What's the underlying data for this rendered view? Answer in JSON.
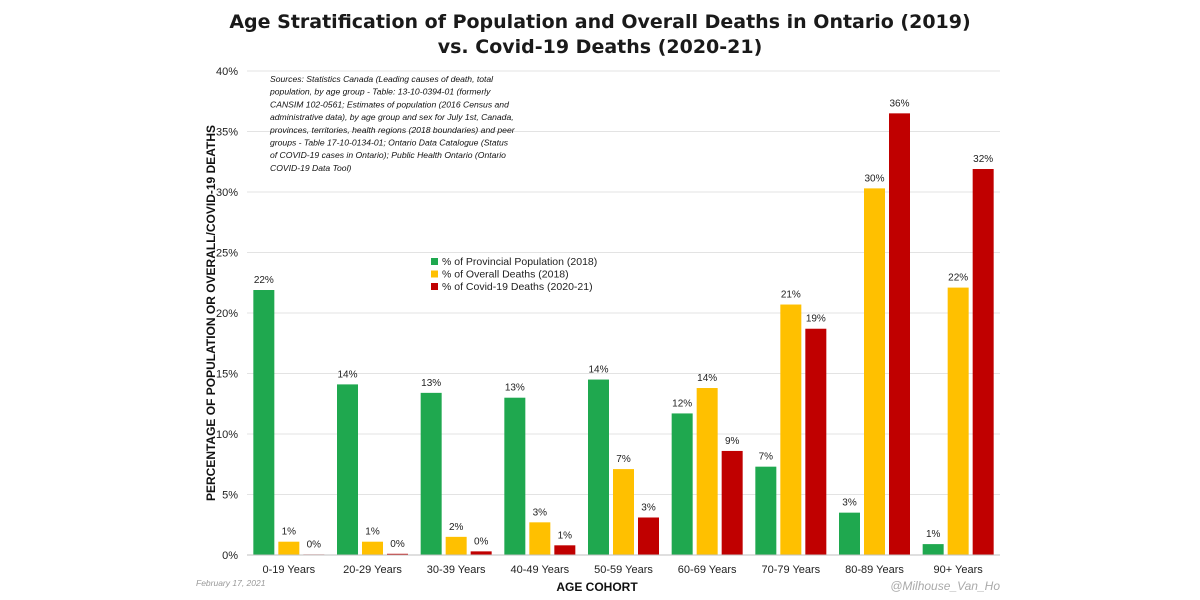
{
  "chart_data": {
    "type": "bar",
    "title_lines": [
      "Age Stratification of Population and Overall Deaths in Ontario (2019)",
      "vs. Covid-19 Deaths (2020-21)"
    ],
    "xlabel": "AGE COHORT",
    "ylabel": "PERCENTAGE OF POPULATION OR OVERALL/COVID-19 DEATHS",
    "ylim": [
      0,
      40
    ],
    "yticks": [
      "0%",
      "5%",
      "10%",
      "15%",
      "20%",
      "25%",
      "30%",
      "35%",
      "40%"
    ],
    "grid": true,
    "legend_position": "center-left",
    "categories": [
      "0-19 Years",
      "20-29 Years",
      "30-39 Years",
      "40-49 Years",
      "50-59 Years",
      "60-69 Years",
      "70-79 Years",
      "80-89 Years",
      "90+ Years"
    ],
    "series": [
      {
        "name": "% of Provincial Population (2018)",
        "color": "#1fa84f",
        "values": [
          21.9,
          14.1,
          13.4,
          13.0,
          14.5,
          11.7,
          7.3,
          3.5,
          0.9
        ],
        "labels": [
          "22%",
          "14%",
          "13%",
          "13%",
          "14%",
          "12%",
          "7%",
          "3%",
          "1%"
        ]
      },
      {
        "name": "% of Overall Deaths (2018)",
        "color": "#ffc000",
        "values": [
          1.1,
          1.1,
          1.5,
          2.7,
          7.1,
          13.8,
          20.7,
          30.3,
          22.1
        ],
        "labels": [
          "1%",
          "1%",
          "2%",
          "3%",
          "7%",
          "14%",
          "21%",
          "30%",
          "22%"
        ]
      },
      {
        "name": "% of Covid-19 Deaths (2020-21)",
        "color": "#c00000",
        "values": [
          0.05,
          0.1,
          0.3,
          0.8,
          3.1,
          8.6,
          18.7,
          36.5,
          31.9
        ],
        "labels": [
          "0%",
          "0%",
          "0%",
          "1%",
          "3%",
          "9%",
          "19%",
          "36%",
          "32%"
        ]
      }
    ],
    "annotations": {
      "sources_lines": [
        "Sources: Statistics Canada (Leading causes of death, total",
        "population, by age group - Table: 13-10-0394-01 (formerly",
        "CANSIM 102-0561; Estimates of population (2016 Census and",
        "administrative data), by age group and sex for July 1st, Canada,",
        "provinces, territories, health regions (2018 boundaries) and peer",
        "groups - Table 17-10-0134-01; Ontario Data Catalogue (Status",
        "of COVID-19 cases in Ontario); Public Health Ontario (Ontario",
        "COVID-19 Data Tool)"
      ],
      "date": "February 17, 2021",
      "handle": "@Milhouse_Van_Ho"
    }
  }
}
